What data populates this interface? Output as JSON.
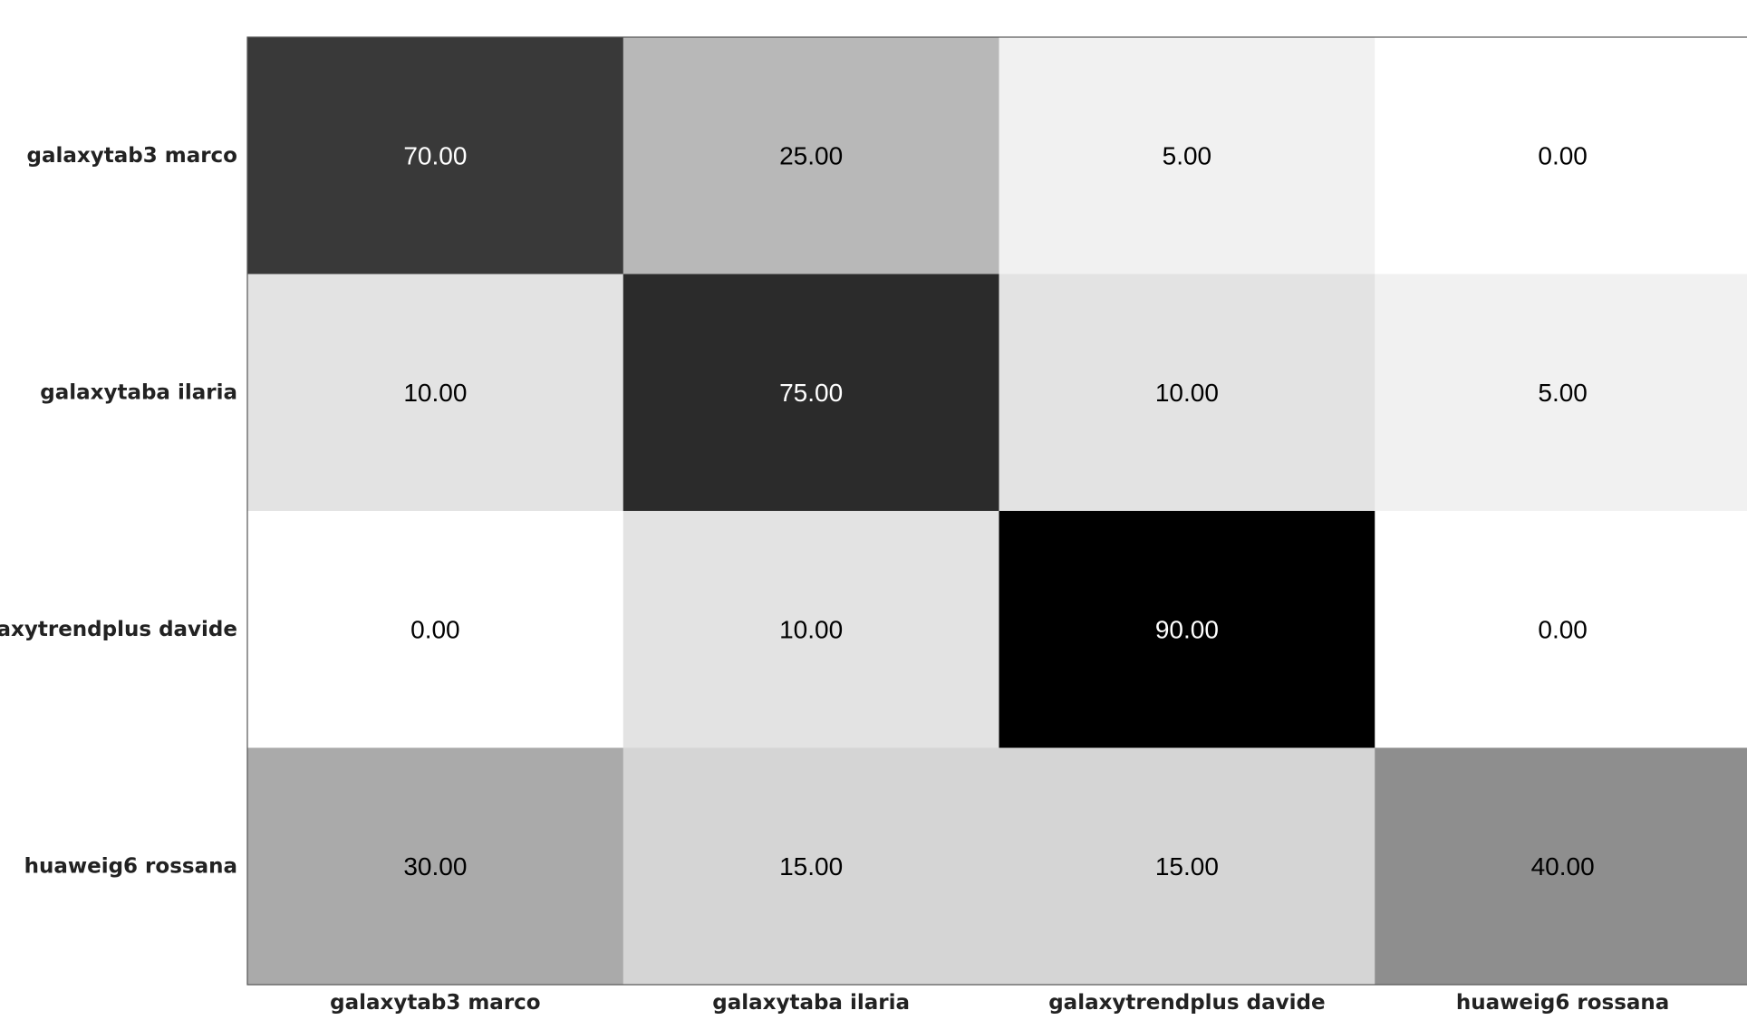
{
  "chart_data": {
    "type": "heatmap",
    "title": "",
    "xlabel": "",
    "ylabel": "",
    "x_categories": [
      "galaxytab3 marco",
      "galaxytaba ilaria",
      "galaxytrendplus davide",
      "huaweig6 rossana"
    ],
    "y_categories": [
      "galaxytab3 marco",
      "galaxytaba ilaria",
      "galaxytrendplus davide",
      "huaweig6 rossana"
    ],
    "values": [
      [
        70,
        25,
        5,
        0
      ],
      [
        10,
        75,
        10,
        5
      ],
      [
        0,
        10,
        90,
        0
      ],
      [
        30,
        15,
        15,
        40
      ]
    ],
    "value_labels": [
      [
        "70.00",
        "25.00",
        "5.00",
        "0.00"
      ],
      [
        "10.00",
        "75.00",
        "10.00",
        "5.00"
      ],
      [
        "0.00",
        "10.00",
        "90.00",
        "0.00"
      ],
      [
        "30.00",
        "15.00",
        "15.00",
        "40.00"
      ]
    ],
    "value_range": [
      0,
      90
    ],
    "colormap": "greys",
    "color_low": "#ffffff",
    "color_high": "#000000",
    "grid": false,
    "legend": "none"
  }
}
